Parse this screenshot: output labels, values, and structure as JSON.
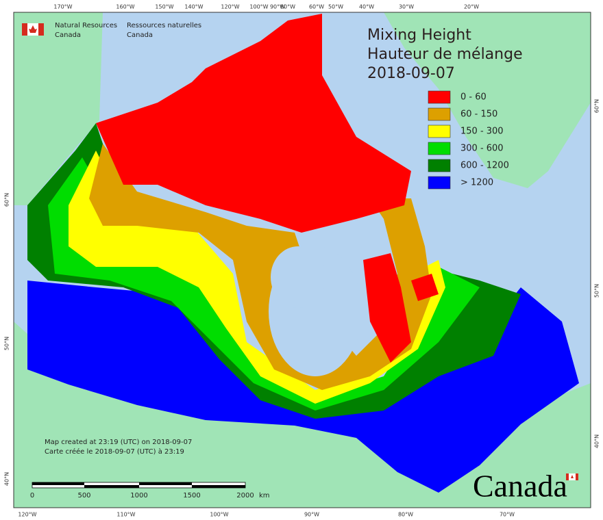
{
  "header": {
    "agency_en": [
      "Natural Resources",
      "Canada"
    ],
    "agency_fr": [
      "Ressources naturelles",
      "Canada"
    ]
  },
  "title": [
    "Mixing Height",
    "Hauteur de mélange",
    "2018-09-07"
  ],
  "legend": [
    {
      "label": "0 - 60",
      "color": "#ff0000"
    },
    {
      "label": "60 - 150",
      "color": "#dda000"
    },
    {
      "label": "150 - 300",
      "color": "#ffff00"
    },
    {
      "label": "300 - 600",
      "color": "#00dd00"
    },
    {
      "label": "600 - 1200",
      "color": "#008000"
    },
    {
      "label": "> 1200",
      "color": "#0000ff"
    }
  ],
  "top_longitudes": [
    "170°W",
    "160°W",
    "150°W",
    "140°W",
    "120°W",
    "100°W",
    "90°W",
    "80°W",
    "60°W",
    "50°W",
    "40°W",
    "30°W",
    "20°W"
  ],
  "bottom_longitudes": [
    "120°W",
    "110°W",
    "100°W",
    "90°W",
    "80°W",
    "70°W"
  ],
  "left_latitudes": [
    "60°N",
    "50°N",
    "40°N"
  ],
  "right_latitudes": [
    "60°N",
    "50°N",
    "40°N"
  ],
  "credits": [
    "Map created at 23:19 (UTC) on 2018-09-07",
    "Carte créée le 2018-09-07 (UTC) à 23:19"
  ],
  "scale_bar": {
    "labels": [
      "0",
      "500",
      "1000",
      "1500",
      "2000"
    ],
    "unit": "km"
  },
  "wordmark": "Canada"
}
